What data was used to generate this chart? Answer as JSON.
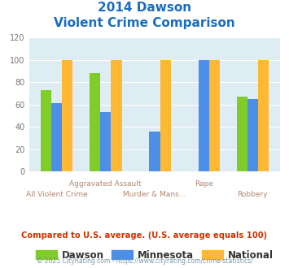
{
  "title_line1": "2014 Dawson",
  "title_line2": "Violent Crime Comparison",
  "categories": [
    "All Violent Crime",
    "Aggravated Assault",
    "Murder & Mans...",
    "Rape",
    "Robbery"
  ],
  "xtick_top": [
    "",
    "Aggravated Assault",
    "",
    "Rape",
    ""
  ],
  "xtick_bottom": [
    "All Violent Crime",
    "",
    "Murder & Mans...",
    "",
    "Robbery"
  ],
  "dawson": [
    73,
    88,
    0,
    0,
    67
  ],
  "minnesota": [
    61,
    53,
    36,
    100,
    65
  ],
  "national": [
    100,
    100,
    100,
    100,
    100
  ],
  "dawson_color": "#80cc28",
  "minnesota_color": "#4d8fe8",
  "national_color": "#ffb833",
  "bg_color": "#deedf3",
  "title_color": "#1a6dbf",
  "xlabel_color": "#b08870",
  "legend_label_color": "#333333",
  "footer_text": "Compared to U.S. average. (U.S. average equals 100)",
  "footer_color": "#cc3300",
  "copyright_text": "© 2025 CityRating.com - https://www.cityrating.com/crime-statistics/",
  "copyright_color": "#7799aa",
  "ylim": [
    0,
    120
  ],
  "yticks": [
    0,
    20,
    40,
    60,
    80,
    100,
    120
  ],
  "bar_width": 0.22
}
